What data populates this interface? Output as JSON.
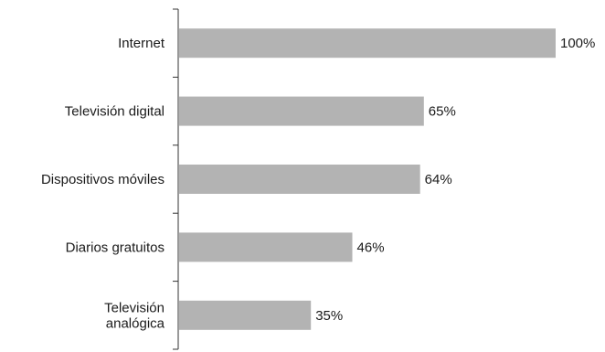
{
  "chart_data": {
    "type": "bar",
    "orientation": "horizontal",
    "categories": [
      "Internet",
      "Televisión digital",
      "Dispositivos móviles",
      "Diarios gratuitos",
      "Televisión analógica"
    ],
    "values": [
      100,
      65,
      64,
      46,
      35
    ],
    "value_labels": [
      "100%",
      "65%",
      "64%",
      "46%",
      "35%"
    ],
    "xlim": [
      0,
      100
    ],
    "title": "",
    "xlabel": "",
    "ylabel": "",
    "grid": false,
    "bar_color": "#b3b3b3",
    "axis_color": "#333333"
  }
}
